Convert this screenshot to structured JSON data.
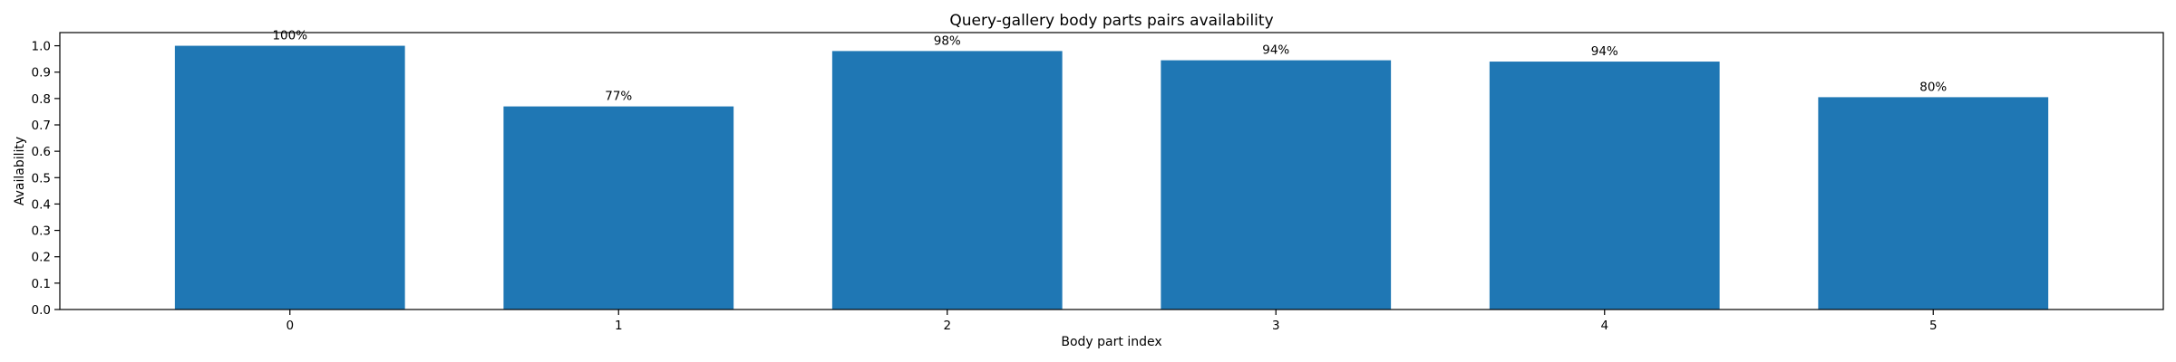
{
  "chart_data": {
    "type": "bar",
    "title": "Query-gallery body parts pairs availability",
    "xlabel": "Body part index",
    "ylabel": "Availability",
    "categories": [
      "0",
      "1",
      "2",
      "3",
      "4",
      "5"
    ],
    "values": [
      1.0,
      0.77,
      0.98,
      0.945,
      0.94,
      0.805
    ],
    "data_labels": [
      "100%",
      "77%",
      "98%",
      "94%",
      "94%",
      "80%"
    ],
    "yticks": [
      0.0,
      0.1,
      0.2,
      0.3,
      0.4,
      0.5,
      0.6,
      0.7,
      0.8,
      0.9,
      1.0
    ],
    "ytick_labels": [
      "0.0",
      "0.1",
      "0.2",
      "0.3",
      "0.4",
      "0.5",
      "0.6",
      "0.7",
      "0.8",
      "0.9",
      "1.0"
    ],
    "ylim": [
      0,
      1.05
    ],
    "bar_color": "#1f77b4",
    "grid": false,
    "legend": "none"
  }
}
